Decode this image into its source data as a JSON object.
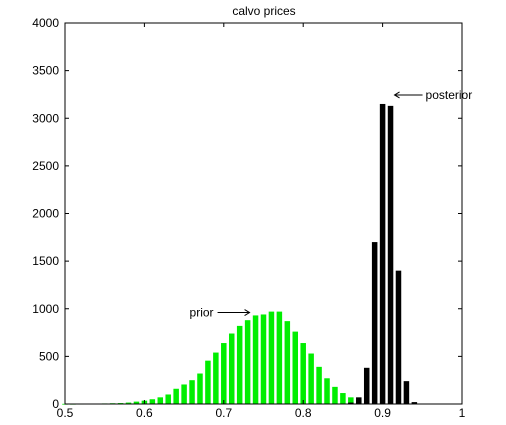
{
  "chart_data": {
    "type": "bar",
    "title": "calvo prices",
    "xlabel": "",
    "ylabel": "",
    "xlim": [
      0.5,
      1.0
    ],
    "ylim": [
      0,
      4000
    ],
    "xticks": [
      "0.5",
      "0.6",
      "0.7",
      "0.8",
      "0.9",
      "1"
    ],
    "yticks": [
      "0",
      "500",
      "1000",
      "1500",
      "2000",
      "2500",
      "3000",
      "3500",
      "4000"
    ],
    "grid": false,
    "legend": "none",
    "series": [
      {
        "color": "#00ee00",
        "x": [
          0.5,
          0.51,
          0.52,
          0.53,
          0.54,
          0.55,
          0.56,
          0.57,
          0.58,
          0.59,
          0.6,
          0.61,
          0.62,
          0.63,
          0.64,
          0.65,
          0.66,
          0.67,
          0.68,
          0.69,
          0.7,
          0.71,
          0.72,
          0.73,
          0.74,
          0.75,
          0.76,
          0.77,
          0.78,
          0.79,
          0.8,
          0.81,
          0.82,
          0.83,
          0.84,
          0.85,
          0.86,
          0.87
        ],
        "values": [
          2,
          2,
          3,
          4,
          5,
          6,
          8,
          10,
          15,
          25,
          35,
          50,
          70,
          100,
          160,
          205,
          250,
          320,
          455,
          540,
          640,
          740,
          820,
          880,
          930,
          940,
          970,
          970,
          870,
          760,
          640,
          530,
          390,
          270,
          180,
          115,
          70,
          40
        ]
      },
      {
        "color": "#000000",
        "x": [
          0.86,
          0.87,
          0.88,
          0.89,
          0.9,
          0.91,
          0.92,
          0.93,
          0.94,
          0.95
        ],
        "values": [
          15,
          70,
          380,
          1700,
          3150,
          3130,
          1400,
          240,
          20,
          5
        ]
      }
    ],
    "annotations": [
      {
        "text": "prior",
        "x": 0.74,
        "y": 960
      },
      {
        "text": "posterior",
        "x": 0.91,
        "y": 3150
      }
    ]
  }
}
